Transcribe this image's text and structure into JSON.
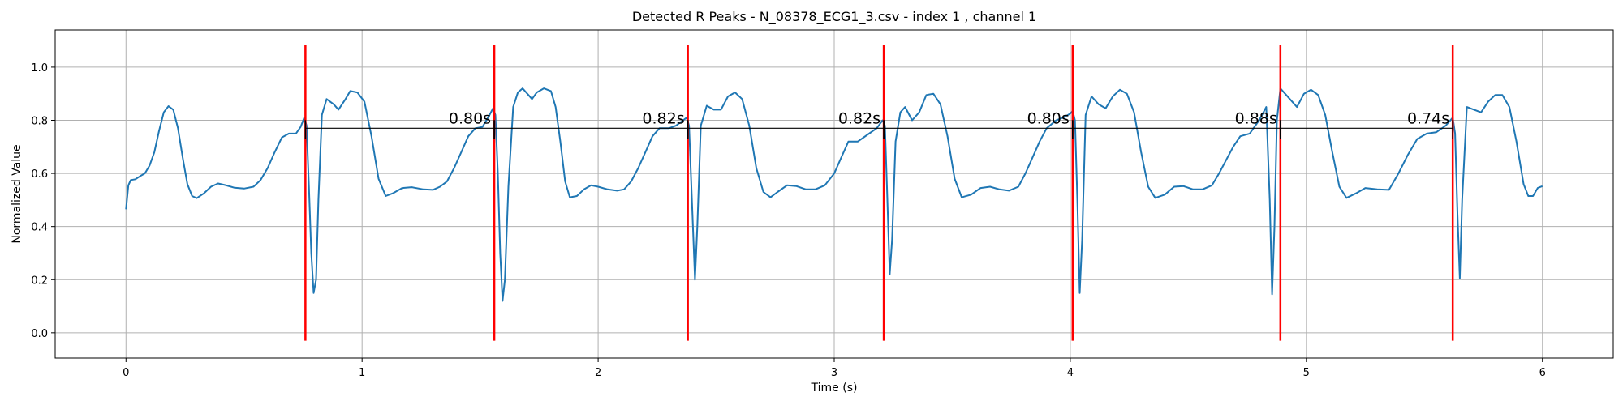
{
  "chart_data": {
    "type": "line",
    "title": "Detected R Peaks - N_08378_ECG1_3.csv - index 1 , channel 1",
    "xlabel": "Time (s)",
    "ylabel": "Normalized Value",
    "xlim": [
      -0.3,
      6.3
    ],
    "ylim": [
      -0.095,
      1.14
    ],
    "xticks": [
      0,
      1,
      2,
      3,
      4,
      5,
      6
    ],
    "xtick_labels": [
      "0",
      "1",
      "2",
      "3",
      "4",
      "5",
      "6"
    ],
    "yticks": [
      0.0,
      0.2,
      0.4,
      0.6,
      0.8,
      1.0
    ],
    "ytick_labels": [
      "0.0",
      "0.2",
      "0.4",
      "0.6",
      "0.8",
      "1.0"
    ],
    "grid": true,
    "colors": {
      "signal": "#1f77b4",
      "peak": "#ff0000",
      "interval": "#000000",
      "grid": "#b0b0b0"
    },
    "series": [
      {
        "values": [
          [
            0.0,
            0.465
          ],
          [
            0.01,
            0.555
          ],
          [
            0.02,
            0.575
          ],
          [
            0.04,
            0.578
          ],
          [
            0.06,
            0.59
          ],
          [
            0.08,
            0.6
          ],
          [
            0.1,
            0.63
          ],
          [
            0.12,
            0.68
          ],
          [
            0.14,
            0.76
          ],
          [
            0.16,
            0.83
          ],
          [
            0.18,
            0.853
          ],
          [
            0.2,
            0.84
          ],
          [
            0.22,
            0.77
          ],
          [
            0.24,
            0.66
          ],
          [
            0.26,
            0.56
          ],
          [
            0.28,
            0.515
          ],
          [
            0.3,
            0.507
          ],
          [
            0.33,
            0.525
          ],
          [
            0.36,
            0.55
          ],
          [
            0.39,
            0.562
          ],
          [
            0.42,
            0.556
          ],
          [
            0.46,
            0.546
          ],
          [
            0.5,
            0.543
          ],
          [
            0.54,
            0.55
          ],
          [
            0.57,
            0.575
          ],
          [
            0.6,
            0.62
          ],
          [
            0.63,
            0.68
          ],
          [
            0.66,
            0.735
          ],
          [
            0.69,
            0.75
          ],
          [
            0.72,
            0.75
          ],
          [
            0.74,
            0.775
          ],
          [
            0.755,
            0.81
          ],
          [
            0.765,
            0.78
          ],
          [
            0.775,
            0.55
          ],
          [
            0.785,
            0.3
          ],
          [
            0.795,
            0.15
          ],
          [
            0.805,
            0.2
          ],
          [
            0.815,
            0.5
          ],
          [
            0.83,
            0.82
          ],
          [
            0.85,
            0.88
          ],
          [
            0.88,
            0.86
          ],
          [
            0.9,
            0.84
          ],
          [
            0.93,
            0.88
          ],
          [
            0.95,
            0.91
          ],
          [
            0.98,
            0.905
          ],
          [
            1.01,
            0.87
          ],
          [
            1.04,
            0.74
          ],
          [
            1.07,
            0.58
          ],
          [
            1.1,
            0.515
          ],
          [
            1.13,
            0.525
          ],
          [
            1.17,
            0.545
          ],
          [
            1.21,
            0.548
          ],
          [
            1.26,
            0.54
          ],
          [
            1.3,
            0.538
          ],
          [
            1.33,
            0.55
          ],
          [
            1.36,
            0.57
          ],
          [
            1.39,
            0.62
          ],
          [
            1.42,
            0.68
          ],
          [
            1.45,
            0.74
          ],
          [
            1.48,
            0.77
          ],
          [
            1.51,
            0.775
          ],
          [
            1.54,
            0.82
          ],
          [
            1.555,
            0.845
          ],
          [
            1.565,
            0.82
          ],
          [
            1.575,
            0.6
          ],
          [
            1.585,
            0.3
          ],
          [
            1.595,
            0.12
          ],
          [
            1.605,
            0.2
          ],
          [
            1.62,
            0.55
          ],
          [
            1.64,
            0.85
          ],
          [
            1.66,
            0.905
          ],
          [
            1.68,
            0.92
          ],
          [
            1.7,
            0.9
          ],
          [
            1.72,
            0.88
          ],
          [
            1.74,
            0.905
          ],
          [
            1.77,
            0.92
          ],
          [
            1.8,
            0.91
          ],
          [
            1.82,
            0.85
          ],
          [
            1.84,
            0.72
          ],
          [
            1.86,
            0.57
          ],
          [
            1.88,
            0.51
          ],
          [
            1.91,
            0.515
          ],
          [
            1.94,
            0.54
          ],
          [
            1.97,
            0.555
          ],
          [
            2.0,
            0.55
          ],
          [
            2.04,
            0.54
          ],
          [
            2.08,
            0.535
          ],
          [
            2.11,
            0.54
          ],
          [
            2.14,
            0.57
          ],
          [
            2.17,
            0.62
          ],
          [
            2.2,
            0.68
          ],
          [
            2.23,
            0.74
          ],
          [
            2.26,
            0.77
          ],
          [
            2.3,
            0.77
          ],
          [
            2.33,
            0.78
          ],
          [
            2.36,
            0.8
          ],
          [
            2.375,
            0.81
          ],
          [
            2.385,
            0.78
          ],
          [
            2.395,
            0.55
          ],
          [
            2.41,
            0.2
          ],
          [
            2.42,
            0.4
          ],
          [
            2.435,
            0.78
          ],
          [
            2.46,
            0.855
          ],
          [
            2.49,
            0.84
          ],
          [
            2.52,
            0.84
          ],
          [
            2.55,
            0.89
          ],
          [
            2.58,
            0.905
          ],
          [
            2.61,
            0.88
          ],
          [
            2.64,
            0.78
          ],
          [
            2.67,
            0.62
          ],
          [
            2.7,
            0.53
          ],
          [
            2.73,
            0.51
          ],
          [
            2.76,
            0.53
          ],
          [
            2.8,
            0.555
          ],
          [
            2.84,
            0.552
          ],
          [
            2.88,
            0.54
          ],
          [
            2.92,
            0.54
          ],
          [
            2.96,
            0.555
          ],
          [
            3.0,
            0.6
          ],
          [
            3.03,
            0.66
          ],
          [
            3.06,
            0.72
          ],
          [
            3.1,
            0.72
          ],
          [
            3.14,
            0.745
          ],
          [
            3.18,
            0.77
          ],
          [
            3.205,
            0.8
          ],
          [
            3.215,
            0.78
          ],
          [
            3.225,
            0.5
          ],
          [
            3.235,
            0.22
          ],
          [
            3.245,
            0.35
          ],
          [
            3.26,
            0.72
          ],
          [
            3.28,
            0.83
          ],
          [
            3.3,
            0.85
          ],
          [
            3.33,
            0.8
          ],
          [
            3.36,
            0.83
          ],
          [
            3.39,
            0.895
          ],
          [
            3.42,
            0.9
          ],
          [
            3.45,
            0.86
          ],
          [
            3.48,
            0.74
          ],
          [
            3.51,
            0.58
          ],
          [
            3.54,
            0.51
          ],
          [
            3.58,
            0.52
          ],
          [
            3.62,
            0.545
          ],
          [
            3.66,
            0.55
          ],
          [
            3.7,
            0.54
          ],
          [
            3.74,
            0.535
          ],
          [
            3.78,
            0.55
          ],
          [
            3.81,
            0.6
          ],
          [
            3.84,
            0.66
          ],
          [
            3.87,
            0.72
          ],
          [
            3.9,
            0.77
          ],
          [
            3.94,
            0.8
          ],
          [
            3.97,
            0.81
          ],
          [
            4.0,
            0.825
          ],
          [
            4.01,
            0.835
          ],
          [
            4.02,
            0.8
          ],
          [
            4.03,
            0.5
          ],
          [
            4.04,
            0.15
          ],
          [
            4.05,
            0.35
          ],
          [
            4.065,
            0.82
          ],
          [
            4.09,
            0.89
          ],
          [
            4.12,
            0.86
          ],
          [
            4.15,
            0.845
          ],
          [
            4.18,
            0.89
          ],
          [
            4.21,
            0.915
          ],
          [
            4.24,
            0.9
          ],
          [
            4.27,
            0.83
          ],
          [
            4.3,
            0.68
          ],
          [
            4.33,
            0.55
          ],
          [
            4.36,
            0.508
          ],
          [
            4.4,
            0.52
          ],
          [
            4.44,
            0.55
          ],
          [
            4.48,
            0.552
          ],
          [
            4.52,
            0.54
          ],
          [
            4.56,
            0.54
          ],
          [
            4.6,
            0.555
          ],
          [
            4.63,
            0.6
          ],
          [
            4.66,
            0.65
          ],
          [
            4.69,
            0.7
          ],
          [
            4.72,
            0.74
          ],
          [
            4.76,
            0.75
          ],
          [
            4.8,
            0.8
          ],
          [
            4.83,
            0.85
          ],
          [
            4.845,
            0.5
          ],
          [
            4.855,
            0.145
          ],
          [
            4.865,
            0.4
          ],
          [
            4.875,
            0.8
          ],
          [
            4.89,
            0.92
          ],
          [
            4.91,
            0.9
          ],
          [
            4.93,
            0.88
          ],
          [
            4.96,
            0.85
          ],
          [
            4.99,
            0.9
          ],
          [
            5.02,
            0.915
          ],
          [
            5.05,
            0.895
          ],
          [
            5.08,
            0.82
          ],
          [
            5.11,
            0.68
          ],
          [
            5.14,
            0.55
          ],
          [
            5.17,
            0.508
          ],
          [
            5.21,
            0.525
          ],
          [
            5.25,
            0.545
          ],
          [
            5.3,
            0.54
          ],
          [
            5.35,
            0.538
          ],
          [
            5.39,
            0.6
          ],
          [
            5.43,
            0.67
          ],
          [
            5.47,
            0.73
          ],
          [
            5.51,
            0.75
          ],
          [
            5.55,
            0.755
          ],
          [
            5.59,
            0.78
          ],
          [
            5.62,
            0.81
          ],
          [
            5.63,
            0.75
          ],
          [
            5.64,
            0.45
          ],
          [
            5.65,
            0.205
          ],
          [
            5.66,
            0.5
          ],
          [
            5.68,
            0.85
          ],
          [
            5.71,
            0.84
          ],
          [
            5.74,
            0.83
          ],
          [
            5.77,
            0.87
          ],
          [
            5.8,
            0.895
          ],
          [
            5.83,
            0.895
          ],
          [
            5.86,
            0.85
          ],
          [
            5.89,
            0.72
          ],
          [
            5.92,
            0.56
          ],
          [
            5.94,
            0.515
          ],
          [
            5.96,
            0.515
          ],
          [
            5.98,
            0.545
          ],
          [
            6.0,
            0.552
          ]
        ]
      }
    ],
    "r_peaks": [
      0.76,
      1.56,
      2.38,
      3.21,
      4.01,
      4.89,
      5.62
    ],
    "peak_line_range": [
      -0.03,
      1.085
    ],
    "interval_line_y": 0.77,
    "intervals": [
      {
        "x_start": 0.76,
        "x_end": 1.56,
        "label": "0.80s"
      },
      {
        "x_start": 1.56,
        "x_end": 2.38,
        "label": "0.82s"
      },
      {
        "x_start": 2.38,
        "x_end": 3.21,
        "label": "0.82s"
      },
      {
        "x_start": 3.21,
        "x_end": 4.01,
        "label": "0.80s"
      },
      {
        "x_start": 4.01,
        "x_end": 4.89,
        "label": "0.88s"
      },
      {
        "x_start": 4.89,
        "x_end": 5.62,
        "label": "0.74s"
      }
    ]
  }
}
